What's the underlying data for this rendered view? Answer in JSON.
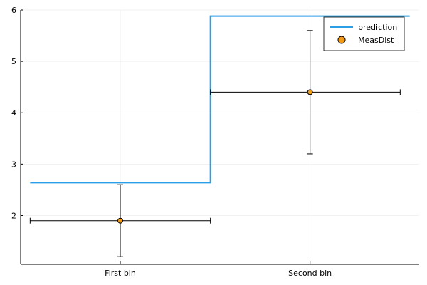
{
  "chart_data": {
    "type": "line",
    "categories": [
      "First bin",
      "Second bin"
    ],
    "x_range": [
      0,
      2.1
    ],
    "ylim": [
      1.05,
      6.0
    ],
    "yticks": [
      2,
      3,
      4,
      5,
      6
    ],
    "ytick_labels": [
      "2",
      "3",
      "4",
      "5",
      "6"
    ],
    "grid": true,
    "legend_position": "top-right",
    "series": [
      {
        "name": "prediction",
        "kind": "step",
        "color": "#2a9fe7",
        "bins": [
          {
            "x_from": 0.05,
            "x_to": 1.0,
            "value": 2.64
          },
          {
            "x_from": 1.0,
            "x_to": 2.05,
            "value": 5.88
          }
        ]
      },
      {
        "name": "MeasDist",
        "kind": "scatter",
        "color": "#f29a16",
        "points": [
          {
            "x": 0.525,
            "y": 1.9,
            "xerr": [
              0.05,
              1.0
            ],
            "yerr": [
              1.2,
              2.6
            ]
          },
          {
            "x": 1.525,
            "y": 4.4,
            "xerr": [
              1.0,
              2.0
            ],
            "yerr": [
              3.2,
              5.6
            ]
          }
        ]
      }
    ]
  }
}
